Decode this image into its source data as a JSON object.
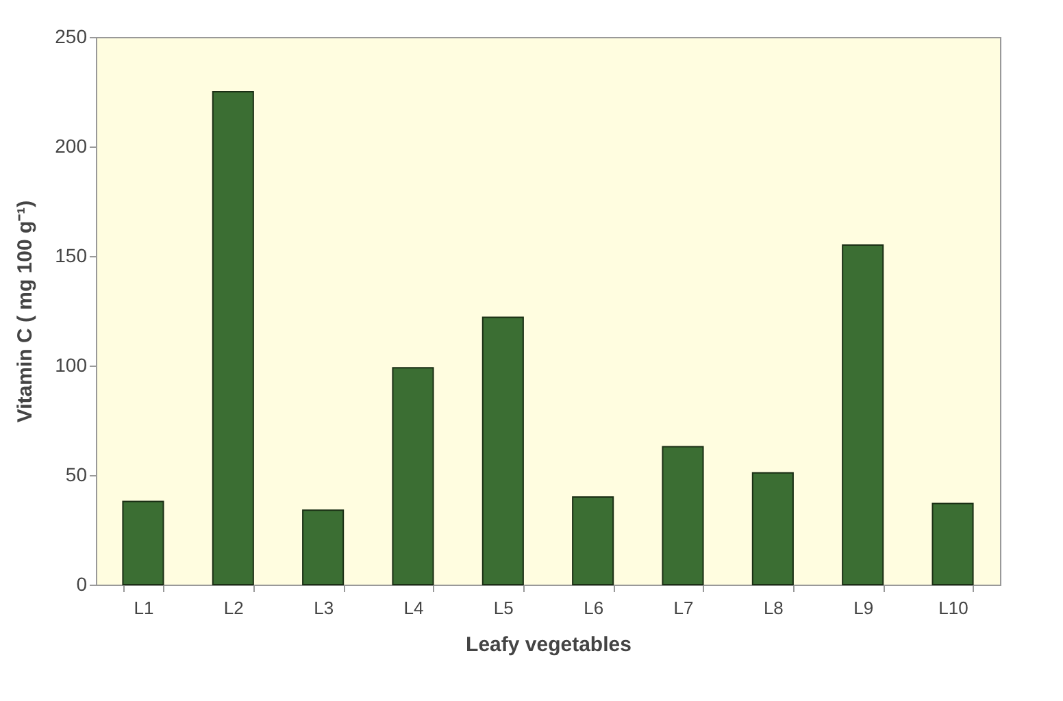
{
  "chart_data": {
    "type": "bar",
    "xlabel": "Leafy vegetables",
    "ylabel": "Vitamin C ( mg 100 g⁻¹)",
    "categories": [
      "L1",
      "L2",
      "L3",
      "L4",
      "L5",
      "L6",
      "L7",
      "L8",
      "L9",
      "L10"
    ],
    "values": [
      38,
      225,
      34,
      99,
      122,
      40,
      63,
      51,
      155,
      37
    ],
    "color": "#3b6e33",
    "ylim": [
      0,
      250
    ],
    "yticks": [
      0,
      50,
      100,
      150,
      200,
      250
    ],
    "grid": false
  }
}
